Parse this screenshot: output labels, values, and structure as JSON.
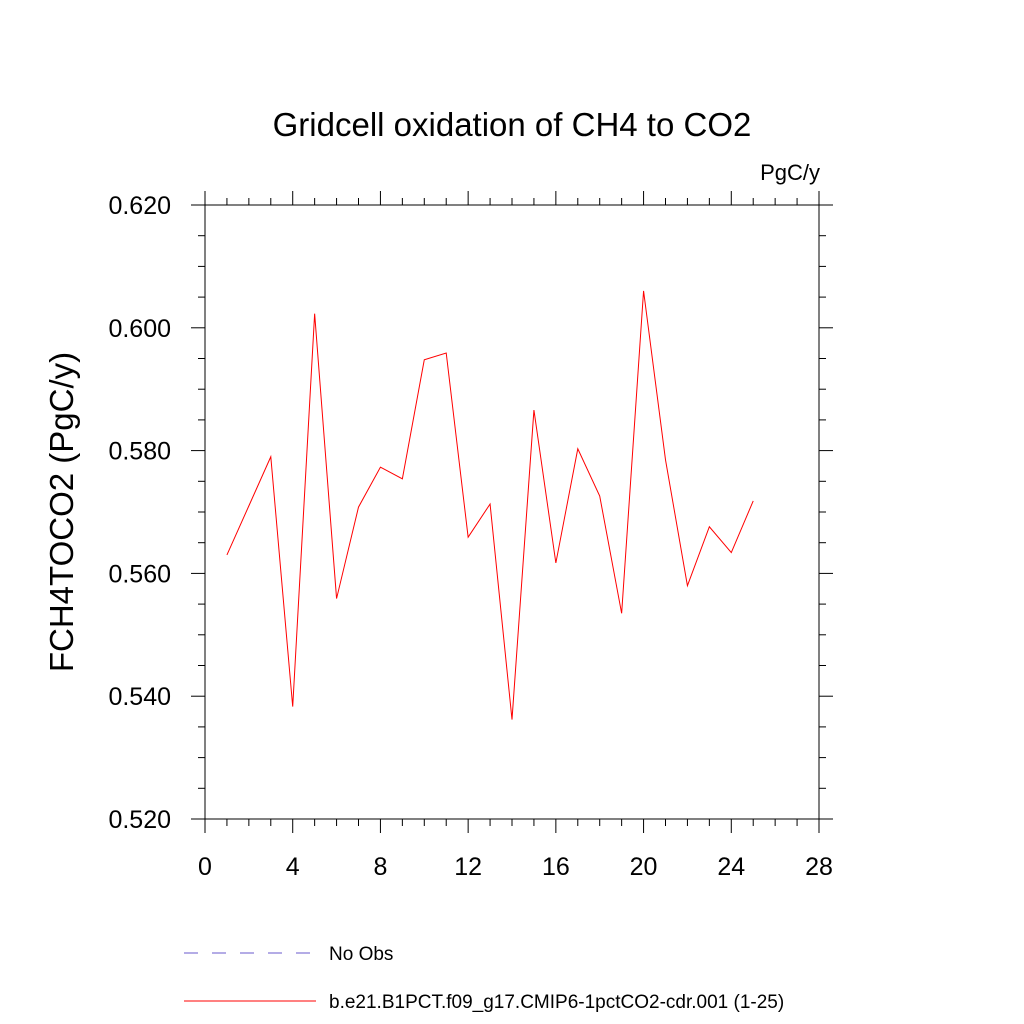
{
  "chart_data": {
    "type": "line",
    "title": "Gridcell oxidation of CH4 to CO2",
    "units": "PgC/y",
    "xlabel": "",
    "ylabel": "FCH4TOCO2  (PgC/y)",
    "xlim": [
      0,
      28
    ],
    "ylim": [
      0.52,
      0.62
    ],
    "xticks": [
      0,
      4,
      8,
      12,
      16,
      20,
      24,
      28
    ],
    "xtick_labels": [
      "0",
      "4",
      "8",
      "12",
      "16",
      "20",
      "24",
      "28"
    ],
    "yticks": [
      0.52,
      0.54,
      0.56,
      0.58,
      0.6,
      0.62
    ],
    "ytick_labels": [
      "0.520",
      "0.540",
      "0.560",
      "0.580",
      "0.600",
      "0.620"
    ],
    "series": [
      {
        "name": "b.e21.B1PCT.f09_g17.CMIP6-1pctCO2-cdr.001 (1-25)",
        "color": "#ff0000",
        "style": "solid",
        "x": [
          1,
          2,
          3,
          4,
          5,
          6,
          7,
          8,
          9,
          10,
          11,
          12,
          13,
          14,
          15,
          16,
          17,
          18,
          19,
          20,
          21,
          22,
          23,
          24,
          25
        ],
        "values": [
          0.563,
          0.571,
          0.579,
          0.5383,
          0.6023,
          0.5559,
          0.5708,
          0.5773,
          0.5754,
          0.5948,
          0.5959,
          0.5659,
          0.5713,
          0.5362,
          0.5866,
          0.5617,
          0.5803,
          0.5726,
          0.5535,
          0.606,
          0.5785,
          0.558,
          0.5676,
          0.5634,
          0.5718
        ]
      }
    ],
    "legend": [
      {
        "label": "No Obs",
        "color": "#6a5acd",
        "style": "dashed"
      },
      {
        "label": "b.e21.B1PCT.f09_g17.CMIP6-1pctCO2-cdr.001 (1-25)",
        "color": "#ff0000",
        "style": "solid"
      }
    ]
  }
}
